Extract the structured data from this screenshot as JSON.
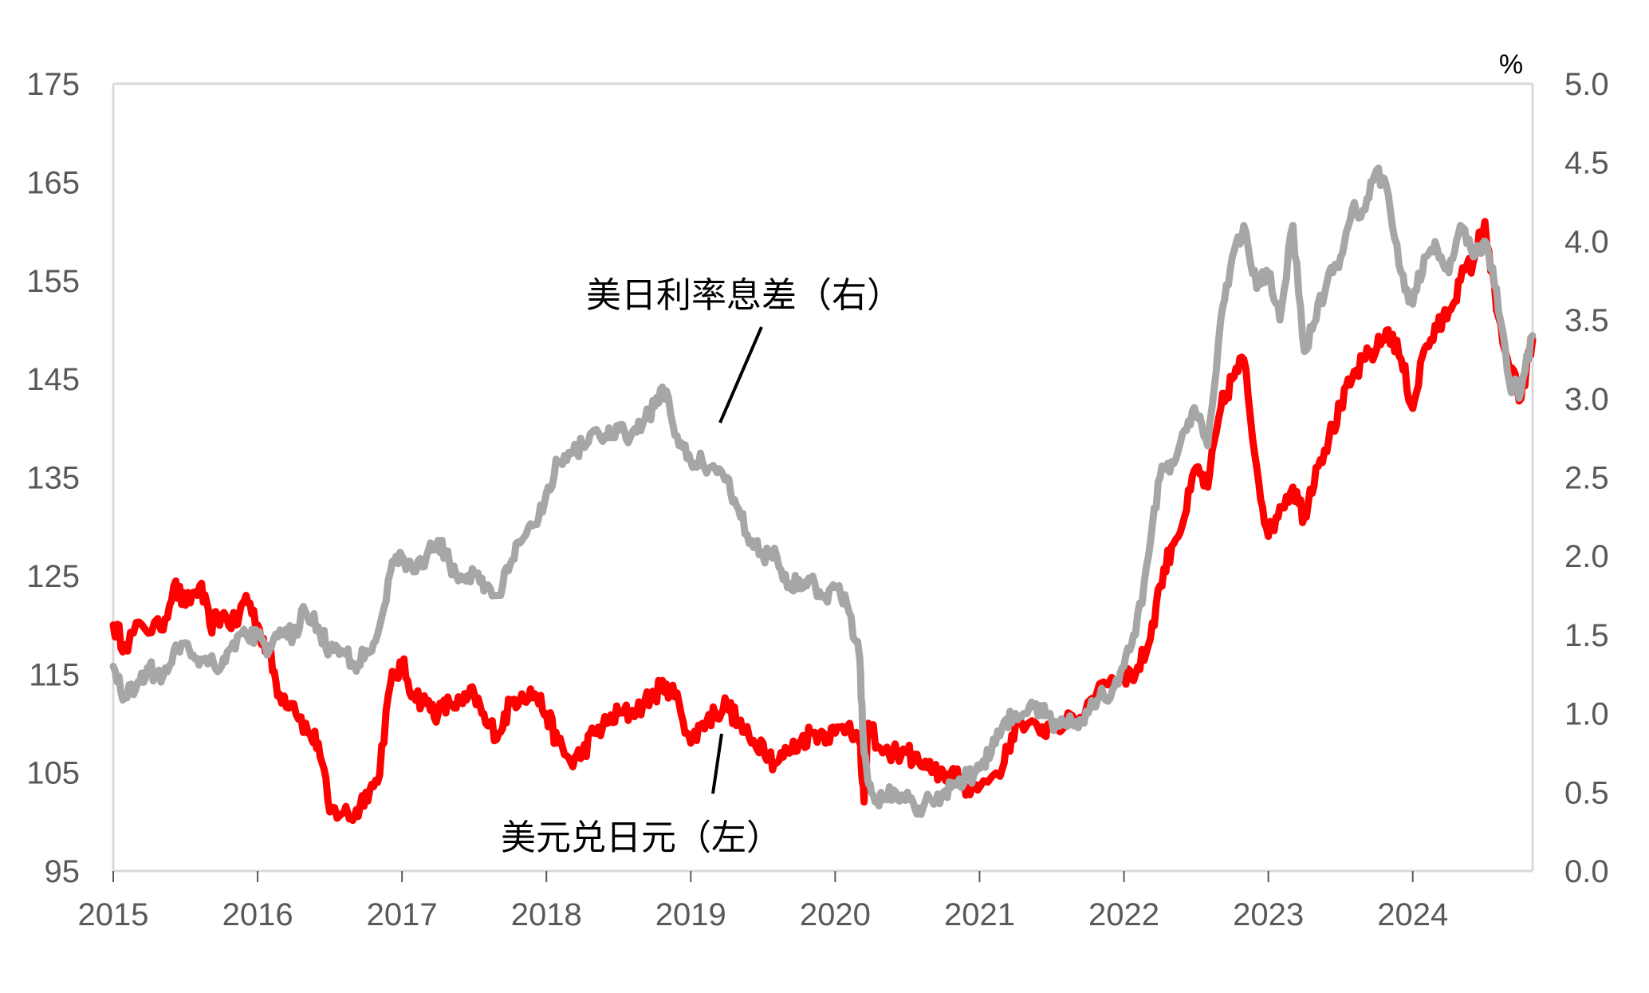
{
  "chart_data": {
    "type": "line",
    "unit_right": "%",
    "x_ticks": [
      "2015",
      "2016",
      "2017",
      "2018",
      "2019",
      "2020",
      "2021",
      "2022",
      "2023",
      "2024"
    ],
    "x_range": [
      2015.0,
      2024.83
    ],
    "y_left": {
      "ticks": [
        "95",
        "105",
        "115",
        "125",
        "135",
        "145",
        "155",
        "165",
        "175"
      ],
      "range": [
        95,
        175
      ]
    },
    "y_right": {
      "ticks": [
        "0.0",
        "0.5",
        "1.0",
        "1.5",
        "2.0",
        "2.5",
        "3.0",
        "3.5",
        "4.0",
        "4.5",
        "5.0"
      ],
      "range": [
        0.0,
        5.0
      ]
    },
    "grid": false,
    "series": [
      {
        "name": "美元兑日元（左）",
        "axis": "left",
        "color": "#FF0000",
        "points": [
          [
            2015.0,
            120
          ],
          [
            2015.08,
            118
          ],
          [
            2015.2,
            120
          ],
          [
            2015.33,
            119.5
          ],
          [
            2015.42,
            124
          ],
          [
            2015.5,
            122
          ],
          [
            2015.6,
            124
          ],
          [
            2015.67,
            120
          ],
          [
            2015.75,
            121
          ],
          [
            2015.85,
            120
          ],
          [
            2015.92,
            123
          ],
          [
            2016.0,
            120
          ],
          [
            2016.08,
            117
          ],
          [
            2016.15,
            113
          ],
          [
            2016.25,
            112
          ],
          [
            2016.35,
            109
          ],
          [
            2016.42,
            108
          ],
          [
            2016.5,
            101
          ],
          [
            2016.6,
            101
          ],
          [
            2016.67,
            100.5
          ],
          [
            2016.75,
            103
          ],
          [
            2016.83,
            104
          ],
          [
            2016.92,
            114
          ],
          [
            2017.0,
            116
          ],
          [
            2017.08,
            113
          ],
          [
            2017.17,
            112
          ],
          [
            2017.25,
            111
          ],
          [
            2017.33,
            112
          ],
          [
            2017.42,
            112
          ],
          [
            2017.5,
            113
          ],
          [
            2017.58,
            110
          ],
          [
            2017.67,
            109
          ],
          [
            2017.75,
            112
          ],
          [
            2017.83,
            113
          ],
          [
            2017.92,
            113
          ],
          [
            2018.0,
            111
          ],
          [
            2018.08,
            108
          ],
          [
            2018.17,
            106
          ],
          [
            2018.25,
            107
          ],
          [
            2018.33,
            109
          ],
          [
            2018.42,
            110
          ],
          [
            2018.5,
            111
          ],
          [
            2018.58,
            111
          ],
          [
            2018.67,
            112
          ],
          [
            2018.75,
            113
          ],
          [
            2018.83,
            114
          ],
          [
            2018.92,
            112
          ],
          [
            2019.0,
            108
          ],
          [
            2019.08,
            110
          ],
          [
            2019.17,
            111
          ],
          [
            2019.25,
            112
          ],
          [
            2019.33,
            110
          ],
          [
            2019.42,
            108
          ],
          [
            2019.5,
            108
          ],
          [
            2019.58,
            106
          ],
          [
            2019.67,
            107
          ],
          [
            2019.75,
            108
          ],
          [
            2019.83,
            109
          ],
          [
            2019.92,
            109
          ],
          [
            2020.0,
            109
          ],
          [
            2020.1,
            110
          ],
          [
            2020.17,
            108
          ],
          [
            2020.2,
            102
          ],
          [
            2020.23,
            110
          ],
          [
            2020.33,
            107
          ],
          [
            2020.5,
            107
          ],
          [
            2020.58,
            106
          ],
          [
            2020.67,
            105
          ],
          [
            2020.75,
            105
          ],
          [
            2020.83,
            104.5
          ],
          [
            2020.92,
            103.5
          ],
          [
            2021.0,
            103.5
          ],
          [
            2021.17,
            106
          ],
          [
            2021.25,
            110
          ],
          [
            2021.42,
            109
          ],
          [
            2021.5,
            110
          ],
          [
            2021.67,
            110
          ],
          [
            2021.83,
            114
          ],
          [
            2022.0,
            115
          ],
          [
            2022.08,
            115
          ],
          [
            2022.17,
            118
          ],
          [
            2022.25,
            124
          ],
          [
            2022.33,
            128
          ],
          [
            2022.42,
            131
          ],
          [
            2022.5,
            136
          ],
          [
            2022.58,
            134
          ],
          [
            2022.67,
            142
          ],
          [
            2022.75,
            145
          ],
          [
            2022.83,
            147
          ],
          [
            2022.92,
            136
          ],
          [
            2023.0,
            129
          ],
          [
            2023.08,
            132
          ],
          [
            2023.17,
            134
          ],
          [
            2023.25,
            131
          ],
          [
            2023.33,
            136
          ],
          [
            2023.42,
            139
          ],
          [
            2023.5,
            142
          ],
          [
            2023.58,
            145
          ],
          [
            2023.67,
            147
          ],
          [
            2023.75,
            148
          ],
          [
            2023.83,
            150
          ],
          [
            2023.92,
            147
          ],
          [
            2024.0,
            142
          ],
          [
            2024.08,
            148
          ],
          [
            2024.17,
            150
          ],
          [
            2024.25,
            152
          ],
          [
            2024.33,
            155
          ],
          [
            2024.42,
            157
          ],
          [
            2024.5,
            161
          ],
          [
            2024.58,
            152
          ],
          [
            2024.67,
            146
          ],
          [
            2024.75,
            143
          ],
          [
            2024.83,
            149
          ]
        ]
      },
      {
        "name": "美日利率息差（右）",
        "axis": "right",
        "color": "#A6A6A6",
        "points": [
          [
            2015.0,
            1.3
          ],
          [
            2015.08,
            1.1
          ],
          [
            2015.17,
            1.2
          ],
          [
            2015.25,
            1.3
          ],
          [
            2015.33,
            1.2
          ],
          [
            2015.42,
            1.4
          ],
          [
            2015.5,
            1.45
          ],
          [
            2015.58,
            1.35
          ],
          [
            2015.67,
            1.35
          ],
          [
            2015.75,
            1.3
          ],
          [
            2015.83,
            1.45
          ],
          [
            2015.92,
            1.5
          ],
          [
            2016.0,
            1.5
          ],
          [
            2016.08,
            1.4
          ],
          [
            2016.17,
            1.5
          ],
          [
            2016.25,
            1.5
          ],
          [
            2016.33,
            1.65
          ],
          [
            2016.42,
            1.55
          ],
          [
            2016.5,
            1.4
          ],
          [
            2016.58,
            1.4
          ],
          [
            2016.67,
            1.3
          ],
          [
            2016.75,
            1.4
          ],
          [
            2016.83,
            1.5
          ],
          [
            2016.92,
            1.9
          ],
          [
            2017.0,
            2.0
          ],
          [
            2017.08,
            1.9
          ],
          [
            2017.17,
            2.0
          ],
          [
            2017.25,
            2.1
          ],
          [
            2017.33,
            1.95
          ],
          [
            2017.42,
            1.85
          ],
          [
            2017.5,
            1.9
          ],
          [
            2017.58,
            1.8
          ],
          [
            2017.67,
            1.75
          ],
          [
            2017.75,
            1.95
          ],
          [
            2017.83,
            2.1
          ],
          [
            2017.92,
            2.2
          ],
          [
            2018.0,
            2.4
          ],
          [
            2018.08,
            2.6
          ],
          [
            2018.17,
            2.65
          ],
          [
            2018.25,
            2.7
          ],
          [
            2018.33,
            2.8
          ],
          [
            2018.42,
            2.75
          ],
          [
            2018.5,
            2.8
          ],
          [
            2018.58,
            2.75
          ],
          [
            2018.67,
            2.85
          ],
          [
            2018.75,
            2.95
          ],
          [
            2018.83,
            3.05
          ],
          [
            2018.92,
            2.7
          ],
          [
            2019.0,
            2.6
          ],
          [
            2019.08,
            2.6
          ],
          [
            2019.17,
            2.55
          ],
          [
            2019.25,
            2.5
          ],
          [
            2019.33,
            2.3
          ],
          [
            2019.42,
            2.1
          ],
          [
            2019.5,
            2.0
          ],
          [
            2019.58,
            2.05
          ],
          [
            2019.67,
            1.8
          ],
          [
            2019.75,
            1.85
          ],
          [
            2019.83,
            1.85
          ],
          [
            2019.92,
            1.75
          ],
          [
            2020.0,
            1.8
          ],
          [
            2020.08,
            1.7
          ],
          [
            2020.17,
            1.35
          ],
          [
            2020.2,
            0.75
          ],
          [
            2020.25,
            0.5
          ],
          [
            2020.33,
            0.45
          ],
          [
            2020.42,
            0.5
          ],
          [
            2020.5,
            0.5
          ],
          [
            2020.58,
            0.4
          ],
          [
            2020.67,
            0.45
          ],
          [
            2020.75,
            0.5
          ],
          [
            2020.83,
            0.55
          ],
          [
            2020.92,
            0.6
          ],
          [
            2021.0,
            0.65
          ],
          [
            2021.08,
            0.75
          ],
          [
            2021.17,
            0.95
          ],
          [
            2021.25,
            1.0
          ],
          [
            2021.33,
            1.0
          ],
          [
            2021.42,
            1.05
          ],
          [
            2021.5,
            0.95
          ],
          [
            2021.58,
            0.95
          ],
          [
            2021.67,
            0.95
          ],
          [
            2021.75,
            1.0
          ],
          [
            2021.83,
            1.1
          ],
          [
            2021.92,
            1.15
          ],
          [
            2022.0,
            1.3
          ],
          [
            2022.08,
            1.5
          ],
          [
            2022.17,
            2.0
          ],
          [
            2022.25,
            2.5
          ],
          [
            2022.33,
            2.6
          ],
          [
            2022.42,
            2.8
          ],
          [
            2022.5,
            2.9
          ],
          [
            2022.58,
            2.7
          ],
          [
            2022.67,
            3.5
          ],
          [
            2022.75,
            3.9
          ],
          [
            2022.83,
            4.1
          ],
          [
            2022.92,
            3.7
          ],
          [
            2023.0,
            3.8
          ],
          [
            2023.08,
            3.5
          ],
          [
            2023.17,
            4.1
          ],
          [
            2023.25,
            3.3
          ],
          [
            2023.33,
            3.5
          ],
          [
            2023.42,
            3.8
          ],
          [
            2023.5,
            3.9
          ],
          [
            2023.58,
            4.2
          ],
          [
            2023.67,
            4.2
          ],
          [
            2023.75,
            4.45
          ],
          [
            2023.83,
            4.3
          ],
          [
            2023.92,
            3.8
          ],
          [
            2024.0,
            3.6
          ],
          [
            2024.08,
            3.9
          ],
          [
            2024.17,
            3.95
          ],
          [
            2024.25,
            3.8
          ],
          [
            2024.33,
            4.1
          ],
          [
            2024.42,
            3.9
          ],
          [
            2024.5,
            4.0
          ],
          [
            2024.58,
            3.7
          ],
          [
            2024.67,
            3.1
          ],
          [
            2024.75,
            3.05
          ],
          [
            2024.83,
            3.4
          ]
        ]
      }
    ],
    "annotations": [
      {
        "text": "美日利率息差（右）",
        "series": "right"
      },
      {
        "text": "美元兑日元（左）",
        "series": "left"
      }
    ]
  }
}
